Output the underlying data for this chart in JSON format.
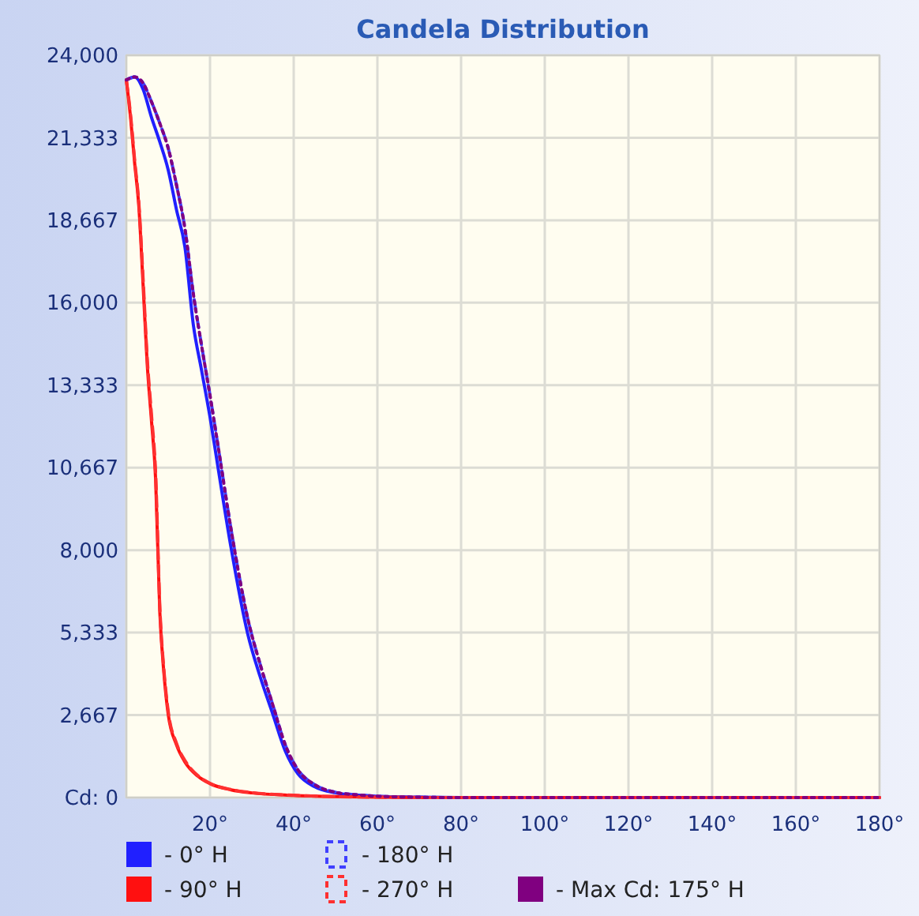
{
  "chart_data": {
    "type": "line",
    "title": "Candela Distribution",
    "x": [
      0,
      2,
      4,
      6,
      8,
      10,
      12,
      14,
      16,
      18,
      20,
      22,
      25,
      29,
      32,
      35,
      38,
      41,
      45,
      50,
      55,
      60,
      70,
      80,
      180
    ],
    "series": [
      {
        "name": "- 0° H",
        "color": "#2020ff",
        "line_style": "solid",
        "values": [
          23200,
          23300,
          22900,
          22000,
          21200,
          20300,
          19000,
          17800,
          15300,
          13800,
          12300,
          10600,
          8100,
          5300,
          3900,
          2700,
          1500,
          770,
          350,
          150,
          80,
          40,
          10,
          0,
          0
        ]
      },
      {
        "name": "- 180° H",
        "color": "#4040ff",
        "line_style": "dashed",
        "values": [
          23200,
          23300,
          23100,
          22500,
          21800,
          21000,
          19800,
          18400,
          16300,
          14600,
          13000,
          11300,
          8700,
          5800,
          4300,
          3000,
          1700,
          900,
          420,
          170,
          90,
          45,
          12,
          0,
          0
        ]
      },
      {
        "name": "- 90° H",
        "color": "#ff1010",
        "line_style": "solid",
        "x": [
          0,
          1,
          2,
          3,
          4,
          5,
          6,
          7,
          8,
          9,
          10,
          12,
          14,
          17,
          20,
          25,
          30,
          40,
          50,
          60,
          80,
          180
        ],
        "values": [
          23200,
          22000,
          20500,
          19100,
          16600,
          14000,
          12200,
          10300,
          6000,
          4000,
          2700,
          1700,
          1150,
          700,
          450,
          250,
          150,
          70,
          30,
          10,
          0,
          0
        ]
      },
      {
        "name": "- 270° H",
        "color": "#ff3030",
        "line_style": "dashed",
        "x": [
          0,
          1,
          2,
          3,
          4,
          5,
          6,
          7,
          8,
          9,
          10,
          12,
          14,
          17,
          20,
          25,
          30,
          40,
          50,
          60,
          80,
          180
        ],
        "values": [
          23200,
          22100,
          20600,
          19200,
          16800,
          14200,
          12400,
          10500,
          6200,
          4100,
          2800,
          1750,
          1200,
          720,
          460,
          260,
          160,
          75,
          30,
          10,
          0,
          0
        ]
      },
      {
        "name": "- Max Cd: 175° H",
        "color": "#800080",
        "line_style": "dotted",
        "values": [
          23200,
          23300,
          23100,
          22500,
          21800,
          21000,
          19800,
          18400,
          16300,
          14600,
          13000,
          11300,
          8700,
          5800,
          4300,
          3000,
          1700,
          900,
          420,
          170,
          90,
          45,
          12,
          0,
          0
        ]
      }
    ],
    "xlim": [
      0,
      180
    ],
    "xticks": [
      {
        "value": 0,
        "label": null
      },
      {
        "value": 20,
        "label": "20°"
      },
      {
        "value": 40,
        "label": "40°"
      },
      {
        "value": 60,
        "label": "60°"
      },
      {
        "value": 80,
        "label": "80°"
      },
      {
        "value": 100,
        "label": "100°"
      },
      {
        "value": 120,
        "label": "120°"
      },
      {
        "value": 140,
        "label": "140°"
      },
      {
        "value": 160,
        "label": "160°"
      },
      {
        "value": 180,
        "label": "180°"
      }
    ],
    "ylim": [
      0,
      24000
    ],
    "yticks": [
      {
        "value": 0,
        "label": "Cd: 0"
      },
      {
        "value": 2667,
        "label": "2,667"
      },
      {
        "value": 5333,
        "label": "5,333"
      },
      {
        "value": 8000,
        "label": "8,000"
      },
      {
        "value": 10667,
        "label": "10,667"
      },
      {
        "value": 13333,
        "label": "13,333"
      },
      {
        "value": 16000,
        "label": "16,000"
      },
      {
        "value": 18667,
        "label": "18,667"
      },
      {
        "value": 21333,
        "label": "21,333"
      },
      {
        "value": 24000,
        "label": "24,000"
      }
    ],
    "grid": true,
    "legend": "bottom",
    "marker": "none"
  }
}
